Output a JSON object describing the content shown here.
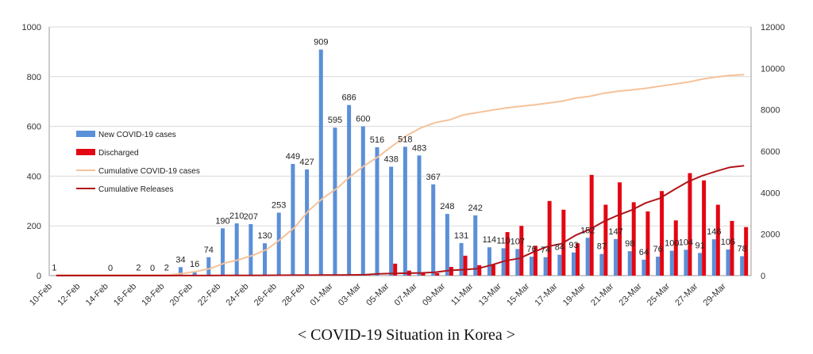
{
  "caption": "< COVID-19 Situation in Korea >",
  "chart_data": {
    "type": "bar",
    "title": "",
    "xlabel": "",
    "ylabel": "",
    "ylim_left": [
      0,
      1000
    ],
    "ylim_right": [
      0,
      12000
    ],
    "y_ticks_left": [
      "0",
      "200",
      "400",
      "600",
      "800",
      "1000"
    ],
    "y_ticks_right": [
      "0",
      "2000",
      "4000",
      "6000",
      "8000",
      "10000",
      "12000"
    ],
    "grid": true,
    "legend_position": "left-middle",
    "x_tick_labels": [
      "10-Feb",
      "12-Feb",
      "14-Feb",
      "16-Feb",
      "18-Feb",
      "20-Feb",
      "22-Feb",
      "24-Feb",
      "26-Feb",
      "28-Feb",
      "01-Mar",
      "03-Mar",
      "05-Mar",
      "07-Mar",
      "09-Mar",
      "11-Mar",
      "13-Mar",
      "15-Mar",
      "17-Mar",
      "19-Mar",
      "21-Mar",
      "23-Mar",
      "25-Mar",
      "27-Mar",
      "29-Mar"
    ],
    "colors": {
      "new_cases": "#5b8fd8",
      "discharged": "#e30613",
      "cumulative_cases": "#f5c29a",
      "cumulative_releases": "#b0151a",
      "grid": "#d9d9d9",
      "axis": "#9a9a9a"
    },
    "series": [
      {
        "name": "New COVID-19 cases",
        "kind": "bar",
        "axis": "left",
        "values": [
          1,
          0,
          0,
          0,
          0,
          0,
          2,
          0,
          2,
          34,
          16,
          74,
          190,
          210,
          207,
          130,
          253,
          449,
          427,
          909,
          595,
          686,
          600,
          516,
          438,
          518,
          483,
          367,
          248,
          131,
          242,
          114,
          110,
          107,
          76,
          74,
          84,
          93,
          152,
          87,
          147,
          98,
          64,
          76,
          100,
          104,
          91,
          146,
          105,
          78
        ],
        "labels": [
          "1",
          "",
          "",
          "",
          "0",
          "",
          "2",
          "0",
          "2",
          "34",
          "16",
          "74",
          "190",
          "210",
          "207",
          "130",
          "253",
          "449",
          "427",
          "909",
          "595",
          "686",
          "600",
          "516",
          "438",
          "518",
          "483",
          "367",
          "248",
          "131",
          "242",
          "114",
          "110",
          "107",
          "76",
          "74",
          "84",
          "93",
          "152",
          "87",
          "147",
          "98",
          "64",
          "76",
          "100",
          "104",
          "91",
          "146",
          "105",
          "78"
        ]
      },
      {
        "name": "Discharged",
        "kind": "bar",
        "axis": "left",
        "values": [
          0,
          0,
          0,
          0,
          0,
          0,
          0,
          0,
          0,
          0,
          0,
          0,
          0,
          0,
          0,
          0,
          0,
          0,
          0,
          0,
          0,
          0,
          0,
          0,
          48,
          20,
          12,
          10,
          35,
          80,
          42,
          45,
          175,
          200,
          120,
          300,
          265,
          130,
          405,
          285,
          375,
          295,
          258,
          340,
          222,
          412,
          383,
          285,
          220,
          195
        ]
      },
      {
        "name": "Cumulative COVID-19 cases",
        "kind": "line",
        "axis": "right",
        "values": [
          28,
          28,
          28,
          28,
          28,
          28,
          30,
          30,
          31,
          104,
          204,
          346,
          602,
          763,
          977,
          1261,
          1766,
          2337,
          3150,
          3736,
          4212,
          4812,
          5328,
          5766,
          6284,
          6767,
          7134,
          7382,
          7513,
          7755,
          7869,
          7979,
          8086,
          8162,
          8236,
          8320,
          8413,
          8565,
          8652,
          8799,
          8897,
          8961,
          9037,
          9137,
          9241,
          9332,
          9478,
          9583,
          9661,
          9700
        ]
      },
      {
        "name": "Cumulative Releases",
        "kind": "line",
        "axis": "right",
        "values": [
          0,
          0,
          0,
          0,
          0,
          0,
          0,
          1,
          1,
          2,
          3,
          5,
          8,
          10,
          12,
          15,
          18,
          22,
          24,
          27,
          30,
          34,
          41,
          88,
          108,
          118,
          130,
          166,
          247,
          288,
          333,
          510,
          714,
          834,
          1137,
          1401,
          1540,
          1947,
          2233,
          2612,
          2909,
          3166,
          3507,
          3730,
          4144,
          4528,
          4811,
          5033,
          5228,
          5300
        ]
      }
    ]
  }
}
